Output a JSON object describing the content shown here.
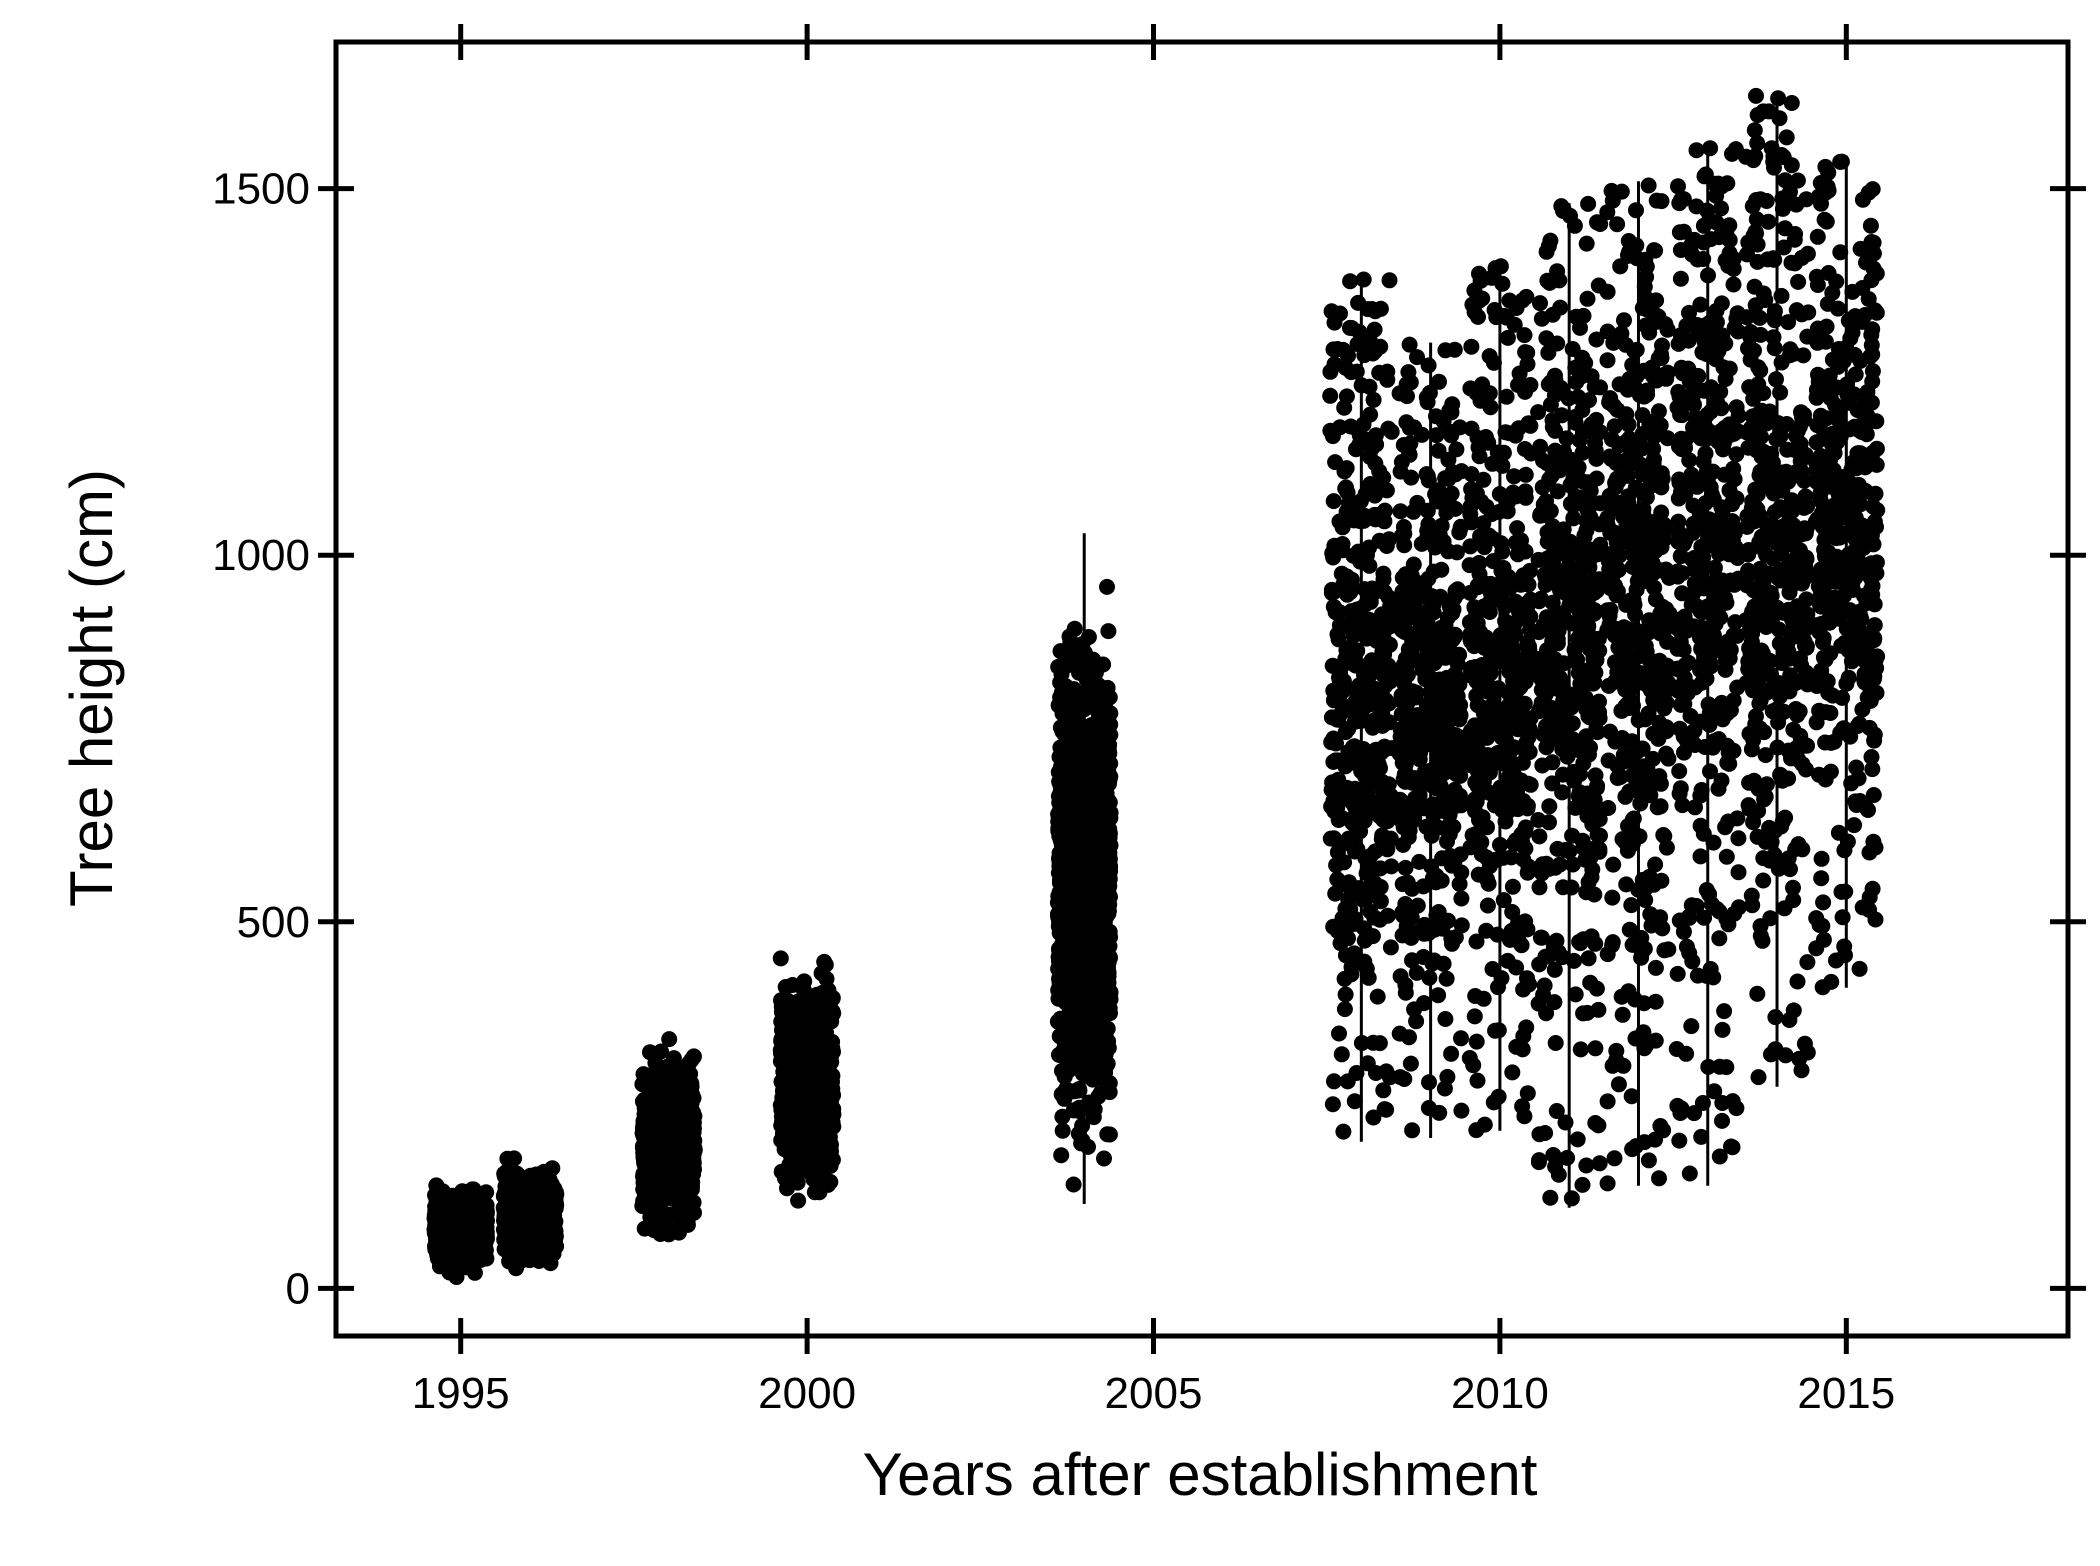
{
  "chart_data": {
    "type": "scatter",
    "title": "",
    "xlabel": "Years after establishment",
    "ylabel": "Tree height (cm)",
    "xlim": [
      1993.2,
      2018.2
    ],
    "ylim": [
      -65,
      1700
    ],
    "x_ticks": [
      1995,
      2000,
      2005,
      2010,
      2015
    ],
    "x_tick_labels": [
      "1995",
      "2000",
      "2005",
      "2010",
      "2015"
    ],
    "y_ticks": [
      0,
      500,
      1000,
      1500
    ],
    "y_tick_labels": [
      "0",
      "500",
      "1000",
      "1500"
    ],
    "grid": false,
    "legend": "none",
    "marker_color": "#000000",
    "groups": [
      {
        "x": 1995.0,
        "y_min": 10,
        "y_max": 150,
        "y_median": 80
      },
      {
        "x": 1996.0,
        "y_min": 20,
        "y_max": 185,
        "y_median": 100
      },
      {
        "x": 1998.0,
        "y_min": 25,
        "y_max": 340,
        "y_median": 200
      },
      {
        "x": 2000.0,
        "y_min": 65,
        "y_max": 450,
        "y_median": 280
      },
      {
        "x": 2004.0,
        "y_min": 115,
        "y_max": 1030,
        "y_median": 560
      },
      {
        "x": 2008.0,
        "y_min": 200,
        "y_max": 1380,
        "y_median": 780
      },
      {
        "x": 2009.0,
        "y_min": 205,
        "y_max": 1290,
        "y_median": 800
      },
      {
        "x": 2010.0,
        "y_min": 215,
        "y_max": 1400,
        "y_median": 840
      },
      {
        "x": 2011.0,
        "y_min": 110,
        "y_max": 1480,
        "y_median": 900
      },
      {
        "x": 2012.0,
        "y_min": 140,
        "y_max": 1510,
        "y_median": 960
      },
      {
        "x": 2013.0,
        "y_min": 140,
        "y_max": 1560,
        "y_median": 1020
      },
      {
        "x": 2014.0,
        "y_min": 275,
        "y_max": 1630,
        "y_median": 1000
      },
      {
        "x": 2015.0,
        "y_min": 410,
        "y_max": 1545,
        "y_median": 1050
      }
    ]
  }
}
